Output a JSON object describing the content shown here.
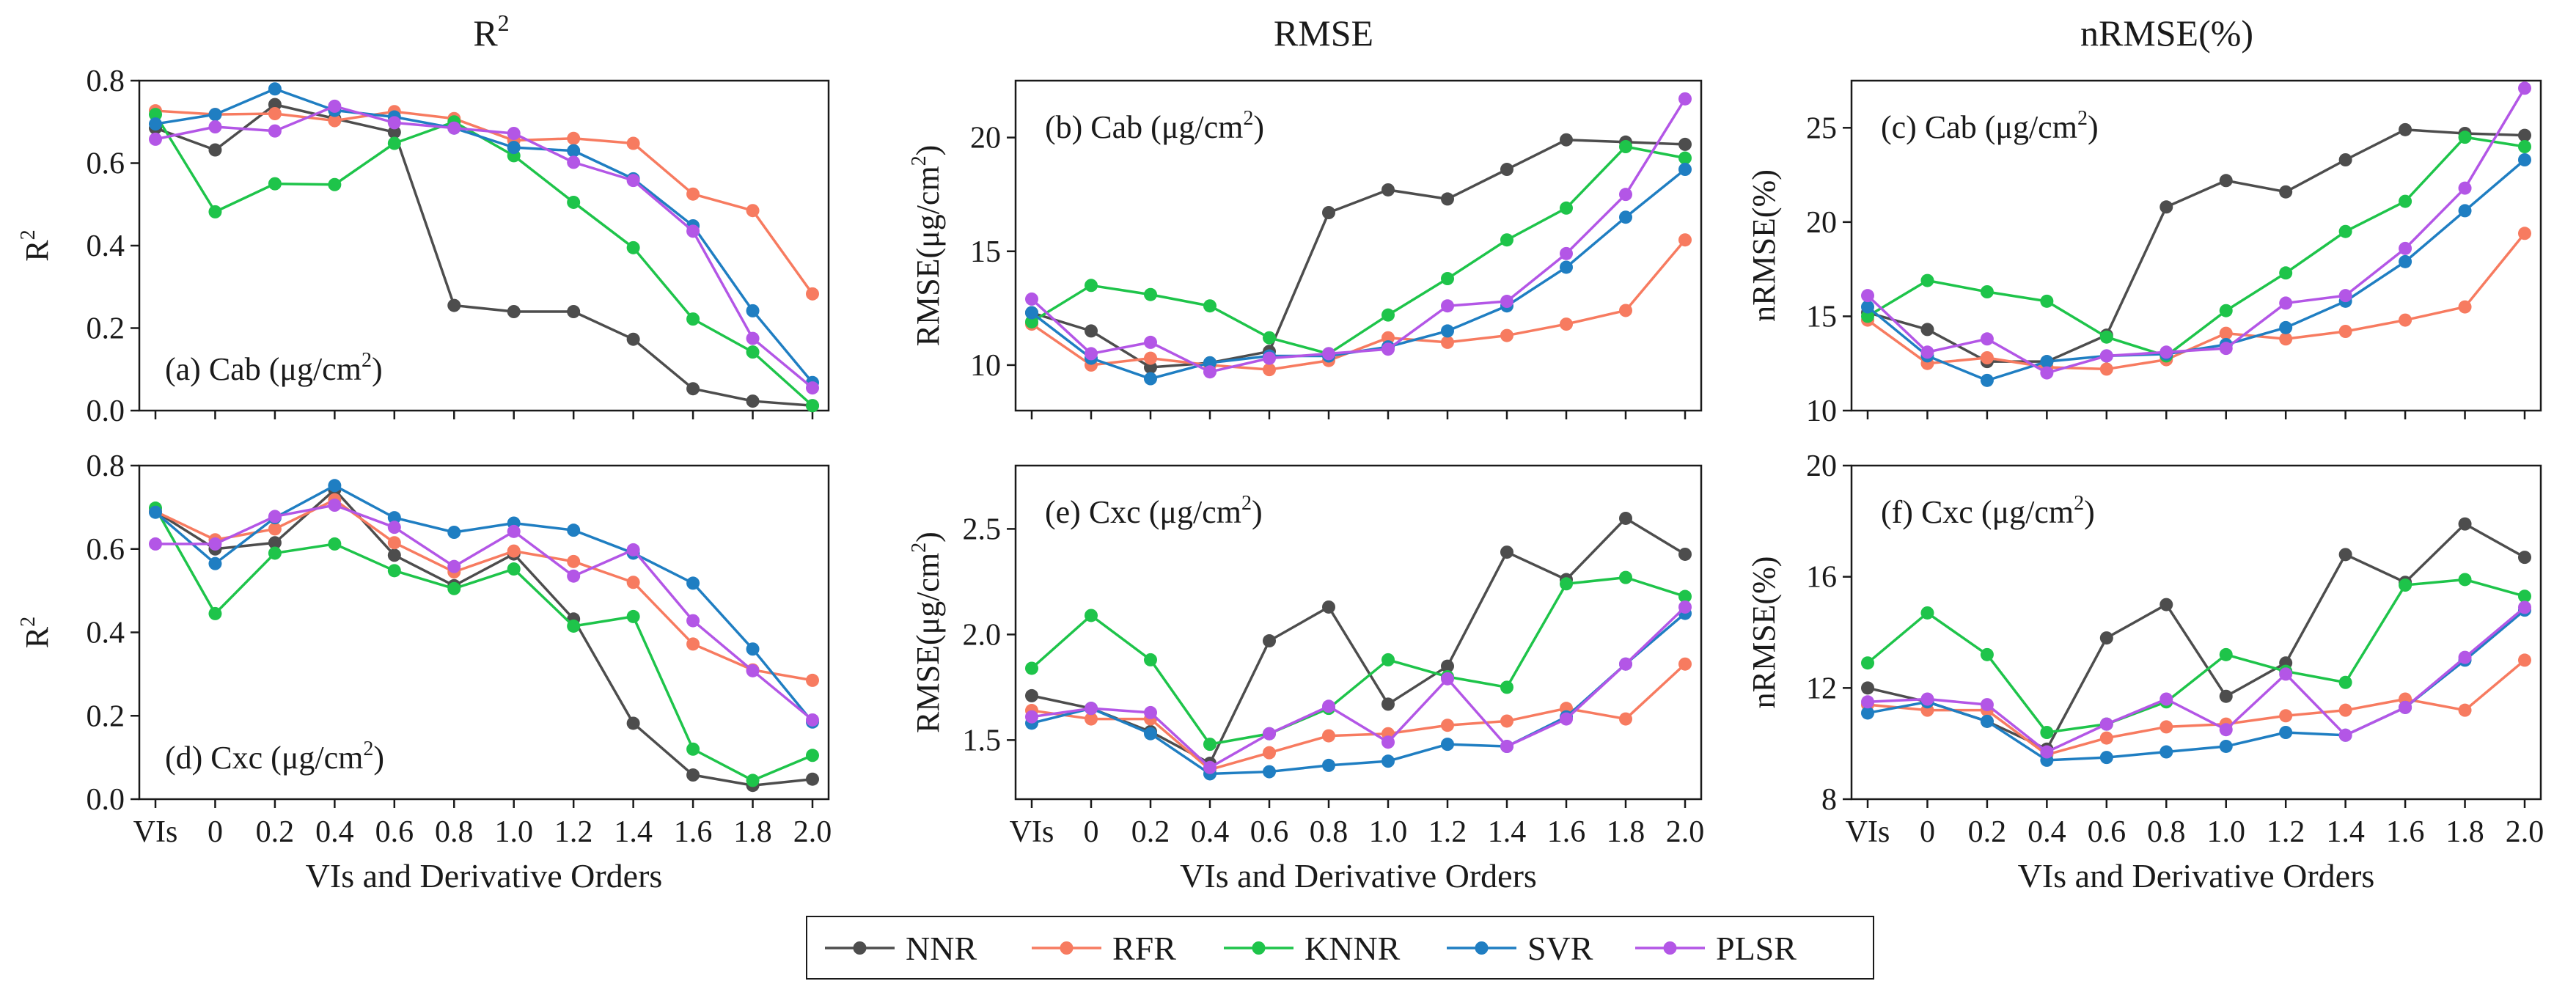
{
  "figure": {
    "column_titles": [
      {
        "text": "R",
        "sup": "2"
      },
      {
        "text": "RMSE",
        "sup": ""
      },
      {
        "text": "nRMSE(%)",
        "sup": ""
      }
    ],
    "xlabel": "VIs and Derivative Orders",
    "categories": [
      "VIs",
      "0",
      "0.2",
      "0.4",
      "0.6",
      "0.8",
      "1.0",
      "1.2",
      "1.4",
      "1.6",
      "1.8",
      "2.0"
    ],
    "legend": [
      {
        "name": "NNR",
        "color": "#4d4d4d"
      },
      {
        "name": "RFR",
        "color": "#f77b60"
      },
      {
        "name": "KNNR",
        "color": "#1ec44a"
      },
      {
        "name": "SVR",
        "color": "#1f7ec2"
      },
      {
        "name": "PLSR",
        "color": "#b356e6"
      }
    ]
  },
  "chart_data": [
    {
      "type": "line",
      "panel": "a",
      "annotation": "(a) Cab (μg/cm",
      "annotation_sup": "2",
      "annotation_tail": ")",
      "ylabel": "R",
      "ylabel_sup": "2",
      "ylabel_tail": "",
      "ylim": [
        0,
        0.8
      ],
      "yticks": [
        0.0,
        0.2,
        0.4,
        0.6,
        0.8
      ],
      "yticklabels": [
        "0.0",
        "0.2",
        "0.4",
        "0.6",
        "0.8"
      ],
      "series": [
        {
          "name": "NNR",
          "values": [
            0.685,
            0.632,
            0.742,
            0.708,
            0.675,
            0.255,
            0.24,
            0.24,
            0.173,
            0.053,
            0.023,
            0.012
          ]
        },
        {
          "name": "RFR",
          "values": [
            0.727,
            0.718,
            0.72,
            0.703,
            0.725,
            0.708,
            0.655,
            0.66,
            0.648,
            0.525,
            0.485,
            0.283
          ]
        },
        {
          "name": "KNNR",
          "values": [
            0.718,
            0.482,
            0.55,
            0.548,
            0.648,
            0.7,
            0.618,
            0.505,
            0.395,
            0.222,
            0.142,
            0.012
          ]
        },
        {
          "name": "SVR",
          "values": [
            0.695,
            0.718,
            0.78,
            0.728,
            0.712,
            0.685,
            0.638,
            0.63,
            0.562,
            0.448,
            0.242,
            0.068
          ]
        },
        {
          "name": "PLSR",
          "values": [
            0.658,
            0.688,
            0.678,
            0.738,
            0.698,
            0.685,
            0.672,
            0.602,
            0.558,
            0.435,
            0.175,
            0.055
          ]
        }
      ]
    },
    {
      "type": "line",
      "panel": "b",
      "annotation": "(b) Cab (μg/cm",
      "annotation_sup": "2",
      "annotation_tail": ")",
      "ylabel": "RMSE(μg/cm",
      "ylabel_sup": "2",
      "ylabel_tail": ")",
      "ylim": [
        8,
        22.5
      ],
      "yticks": [
        10,
        15,
        20
      ],
      "yticklabels": [
        "10",
        "15",
        "20"
      ],
      "series": [
        {
          "name": "NNR",
          "values": [
            12.3,
            11.5,
            9.9,
            10.1,
            10.6,
            16.7,
            17.7,
            17.3,
            18.6,
            19.9,
            19.8,
            19.7
          ]
        },
        {
          "name": "RFR",
          "values": [
            11.8,
            10.0,
            10.3,
            10.0,
            9.8,
            10.2,
            11.2,
            11.0,
            11.3,
            11.8,
            12.4,
            15.5
          ]
        },
        {
          "name": "KNNR",
          "values": [
            11.9,
            13.5,
            13.1,
            12.6,
            11.2,
            10.5,
            12.2,
            13.8,
            15.5,
            16.9,
            19.6,
            19.1
          ]
        },
        {
          "name": "SVR",
          "values": [
            12.3,
            10.3,
            9.4,
            10.1,
            10.4,
            10.4,
            10.8,
            11.5,
            12.6,
            14.3,
            16.5,
            18.6
          ]
        },
        {
          "name": "PLSR",
          "values": [
            12.9,
            10.5,
            11.0,
            9.7,
            10.3,
            10.5,
            10.7,
            12.6,
            12.8,
            14.9,
            17.5,
            21.7
          ]
        }
      ]
    },
    {
      "type": "line",
      "panel": "c",
      "annotation": "(c) Cab (μg/cm",
      "annotation_sup": "2",
      "annotation_tail": ")",
      "ylabel": "nRMSE(%)",
      "ylabel_sup": "",
      "ylabel_tail": "",
      "ylim": [
        10,
        27.5
      ],
      "yticks": [
        10,
        15,
        20,
        25
      ],
      "yticklabels": [
        "10",
        "15",
        "20",
        "25"
      ],
      "series": [
        {
          "name": "NNR",
          "values": [
            15.2,
            14.3,
            12.6,
            12.6,
            14.0,
            20.8,
            22.2,
            21.6,
            23.3,
            24.9,
            24.7,
            24.6
          ]
        },
        {
          "name": "RFR",
          "values": [
            14.8,
            12.5,
            12.8,
            12.3,
            12.2,
            12.7,
            14.1,
            13.8,
            14.2,
            14.8,
            15.5,
            19.4
          ]
        },
        {
          "name": "KNNR",
          "values": [
            15.0,
            16.9,
            16.3,
            15.8,
            13.9,
            12.9,
            15.3,
            17.3,
            19.5,
            21.1,
            24.5,
            24.0
          ]
        },
        {
          "name": "SVR",
          "values": [
            15.5,
            12.9,
            11.6,
            12.6,
            12.9,
            13.0,
            13.5,
            14.4,
            15.8,
            17.9,
            20.6,
            23.3
          ]
        },
        {
          "name": "PLSR",
          "values": [
            16.1,
            13.1,
            13.8,
            12.0,
            12.9,
            13.1,
            13.3,
            15.7,
            16.1,
            18.6,
            21.8,
            27.1
          ]
        }
      ]
    },
    {
      "type": "line",
      "panel": "d",
      "annotation": "(d) Cxc (μg/cm",
      "annotation_sup": "2",
      "annotation_tail": ")",
      "ylabel": "R",
      "ylabel_sup": "2",
      "ylabel_tail": "",
      "ylim": [
        0,
        0.8
      ],
      "yticks": [
        0.0,
        0.2,
        0.4,
        0.6,
        0.8
      ],
      "yticklabels": [
        "0.0",
        "0.2",
        "0.4",
        "0.6",
        "0.8"
      ],
      "series": [
        {
          "name": "NNR",
          "values": [
            0.69,
            0.6,
            0.615,
            0.742,
            0.585,
            0.512,
            0.588,
            0.432,
            0.182,
            0.058,
            0.033,
            0.048
          ]
        },
        {
          "name": "RFR",
          "values": [
            0.69,
            0.622,
            0.648,
            0.718,
            0.615,
            0.545,
            0.595,
            0.57,
            0.52,
            0.372,
            0.31,
            0.285
          ]
        },
        {
          "name": "KNNR",
          "values": [
            0.698,
            0.445,
            0.59,
            0.612,
            0.548,
            0.505,
            0.552,
            0.415,
            0.438,
            0.12,
            0.045,
            0.105
          ]
        },
        {
          "name": "SVR",
          "values": [
            0.688,
            0.565,
            0.675,
            0.752,
            0.675,
            0.64,
            0.662,
            0.645,
            0.59,
            0.518,
            0.36,
            0.185
          ]
        },
        {
          "name": "PLSR",
          "values": [
            0.612,
            0.612,
            0.678,
            0.705,
            0.652,
            0.558,
            0.642,
            0.535,
            0.598,
            0.428,
            0.308,
            0.19
          ]
        }
      ]
    },
    {
      "type": "line",
      "panel": "e",
      "annotation": "(e) Cxc (μg/cm",
      "annotation_sup": "2",
      "annotation_tail": ")",
      "ylabel": "RMSE(μg/cm",
      "ylabel_sup": "2",
      "ylabel_tail": ")",
      "ylim": [
        1.22,
        2.8
      ],
      "yticks": [
        1.5,
        2.0,
        2.5
      ],
      "yticklabels": [
        "1.5",
        "2.0",
        "2.5"
      ],
      "series": [
        {
          "name": "NNR",
          "values": [
            1.71,
            1.65,
            1.54,
            1.39,
            1.97,
            2.13,
            1.67,
            1.85,
            2.39,
            2.26,
            2.55,
            2.38
          ]
        },
        {
          "name": "RFR",
          "values": [
            1.64,
            1.6,
            1.6,
            1.36,
            1.44,
            1.52,
            1.53,
            1.57,
            1.59,
            1.65,
            1.6,
            1.86
          ]
        },
        {
          "name": "KNNR",
          "values": [
            1.84,
            2.09,
            1.88,
            1.48,
            1.53,
            1.65,
            1.88,
            1.8,
            1.75,
            2.24,
            2.27,
            2.18
          ]
        },
        {
          "name": "SVR",
          "values": [
            1.58,
            1.65,
            1.53,
            1.34,
            1.35,
            1.38,
            1.4,
            1.48,
            1.47,
            1.61,
            1.86,
            2.1
          ]
        },
        {
          "name": "PLSR",
          "values": [
            1.61,
            1.65,
            1.63,
            1.37,
            1.53,
            1.66,
            1.49,
            1.79,
            1.47,
            1.6,
            1.86,
            2.13
          ]
        }
      ]
    },
    {
      "type": "line",
      "panel": "f",
      "annotation": "(f) Cxc (μg/cm",
      "annotation_sup": "2",
      "annotation_tail": ")",
      "ylabel": "nRMSE(%)",
      "ylabel_sup": "",
      "ylabel_tail": "",
      "ylim": [
        8,
        20
      ],
      "yticks": [
        8,
        12,
        16,
        20
      ],
      "yticklabels": [
        "8",
        "12",
        "16",
        "20"
      ],
      "series": [
        {
          "name": "NNR",
          "values": [
            12.0,
            11.5,
            10.8,
            9.8,
            13.8,
            15.0,
            11.7,
            12.9,
            16.8,
            15.8,
            17.9,
            16.7
          ]
        },
        {
          "name": "RFR",
          "values": [
            11.4,
            11.2,
            11.2,
            9.6,
            10.2,
            10.6,
            10.7,
            11.0,
            11.2,
            11.6,
            11.2,
            13.0
          ]
        },
        {
          "name": "KNNR",
          "values": [
            12.9,
            14.7,
            13.2,
            10.4,
            10.7,
            11.5,
            13.2,
            12.6,
            12.2,
            15.7,
            15.9,
            15.3
          ]
        },
        {
          "name": "SVR",
          "values": [
            11.1,
            11.5,
            10.8,
            9.4,
            9.5,
            9.7,
            9.9,
            10.4,
            10.3,
            11.3,
            13.0,
            14.8
          ]
        },
        {
          "name": "PLSR",
          "values": [
            11.5,
            11.6,
            11.4,
            9.7,
            10.7,
            11.6,
            10.5,
            12.5,
            10.3,
            11.3,
            13.1,
            14.9
          ]
        }
      ]
    }
  ]
}
